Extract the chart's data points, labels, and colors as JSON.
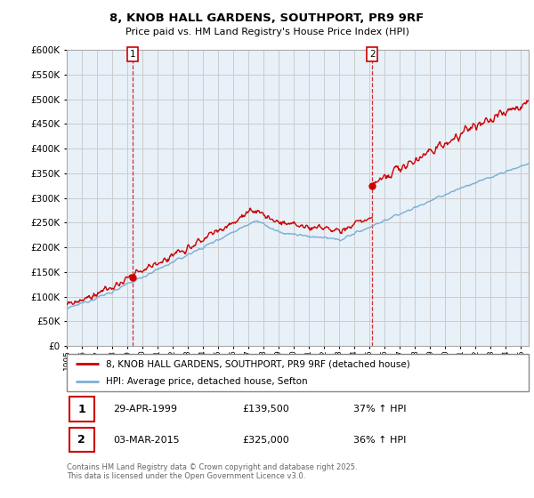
{
  "title": "8, KNOB HALL GARDENS, SOUTHPORT, PR9 9RF",
  "subtitle": "Price paid vs. HM Land Registry's House Price Index (HPI)",
  "sale1_date": "29-APR-1999",
  "sale1_price": 139500,
  "sale1_hpi": "37% ↑ HPI",
  "sale2_date": "03-MAR-2015",
  "sale2_price": 325000,
  "sale2_hpi": "36% ↑ HPI",
  "legend_label1": "8, KNOB HALL GARDENS, SOUTHPORT, PR9 9RF (detached house)",
  "legend_label2": "HPI: Average price, detached house, Sefton",
  "footer": "Contains HM Land Registry data © Crown copyright and database right 2025.\nThis data is licensed under the Open Government Licence v3.0.",
  "ylim": [
    0,
    600000
  ],
  "ytick_step": 50000,
  "line_color_red": "#cc0000",
  "line_color_blue": "#7bafd4",
  "vline_color": "#cc0000",
  "grid_color": "#cccccc",
  "background": "#ffffff",
  "plot_bg": "#e8f0f8",
  "sale1_x": 1999.33,
  "sale2_x": 2015.17
}
